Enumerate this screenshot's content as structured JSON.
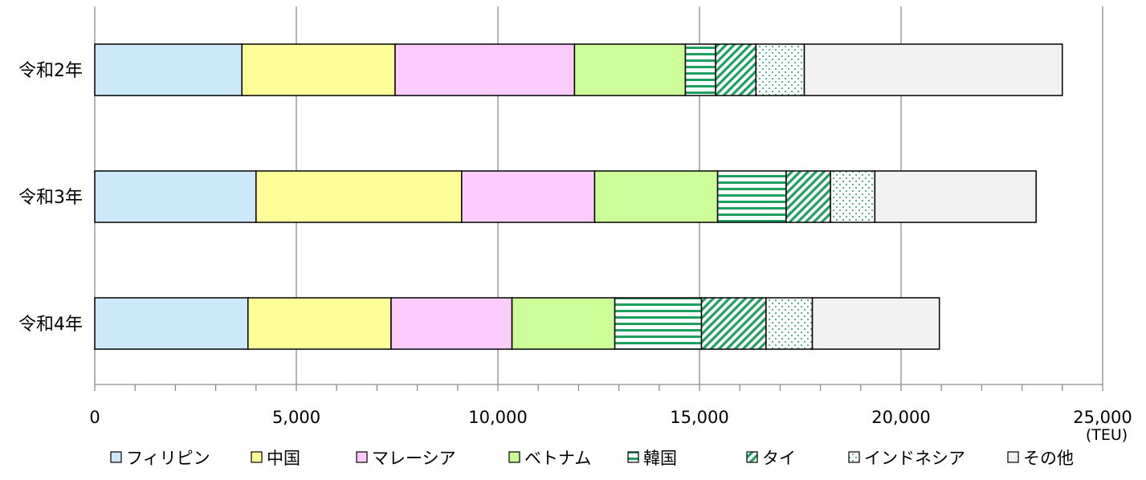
{
  "chart_data": {
    "type": "bar",
    "orientation": "horizontal",
    "stacked": true,
    "categories": [
      "令和2年",
      "令和3年",
      "令和4年"
    ],
    "series": [
      {
        "name": "フィリピン",
        "values": [
          3650,
          4000,
          3800
        ],
        "color": "#cce9fb",
        "pattern": "solid"
      },
      {
        "name": "中国",
        "values": [
          3800,
          5100,
          3550
        ],
        "color": "#fefe99",
        "pattern": "solid"
      },
      {
        "name": "マレーシア",
        "values": [
          4450,
          3300,
          3000
        ],
        "color": "#fdccfd",
        "pattern": "solid"
      },
      {
        "name": "ベトナム",
        "values": [
          2750,
          3050,
          2550
        ],
        "color": "#ccfd99",
        "pattern": "solid"
      },
      {
        "name": "韓国",
        "values": [
          750,
          1700,
          2150
        ],
        "color": "#1ea061",
        "pattern": "horizontal-lines"
      },
      {
        "name": "タイ",
        "values": [
          1000,
          1100,
          1600
        ],
        "color": "#1ea061",
        "pattern": "diagonal-lines"
      },
      {
        "name": "インドネシア",
        "values": [
          1200,
          1100,
          1150
        ],
        "color": "#1ea061",
        "pattern": "dots"
      },
      {
        "name": "その他",
        "values": [
          6400,
          4000,
          3150
        ],
        "color": "#f2f2f2",
        "pattern": "solid"
      }
    ],
    "xlim": [
      0,
      25000
    ],
    "x_ticks": [
      "0",
      "5,000",
      "10,000",
      "15,000",
      "20,000",
      "25,000"
    ],
    "xlabel": "",
    "unit_label": "(TEU)",
    "grid": "vertical major lines",
    "legend_position": "bottom"
  }
}
